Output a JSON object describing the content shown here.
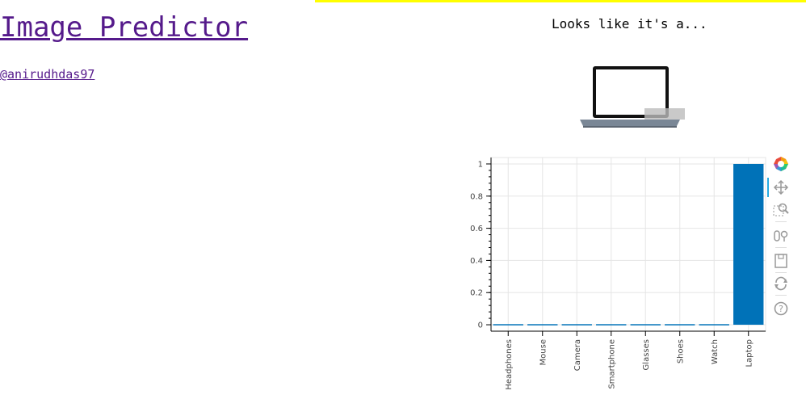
{
  "header": {
    "title": "Image Predictor",
    "author": "@anirudhdas97"
  },
  "result": {
    "heading": "Looks like it's a...",
    "image_label": "laptop-photo"
  },
  "toolbar": {
    "items": [
      "bokeh-logo-icon",
      "pan-icon",
      "box-zoom-icon",
      "wheel-zoom-icon",
      "save-icon",
      "reset-icon",
      "help-icon"
    ]
  },
  "colors": {
    "link": "#551a8b",
    "bar": "#0072b8",
    "accent_bar": "#ffff00"
  },
  "chart_data": {
    "type": "bar",
    "title": "",
    "xlabel": "",
    "ylabel": "",
    "categories": [
      "Headphones",
      "Mouse",
      "Camera",
      "Smartphone",
      "Glasses",
      "Shoes",
      "Watch",
      "Laptop"
    ],
    "values": [
      0.0,
      0.0,
      0.0,
      0.0,
      0.0,
      0.0,
      0.0,
      1.0
    ],
    "ylim": [
      -0.04,
      1.04
    ],
    "yticks": [
      0,
      0.2,
      0.4,
      0.6,
      0.8,
      1
    ],
    "ytick_labels": [
      "0",
      "0.2",
      "0.4",
      "0.6",
      "0.8",
      "1"
    ],
    "grid": true
  }
}
